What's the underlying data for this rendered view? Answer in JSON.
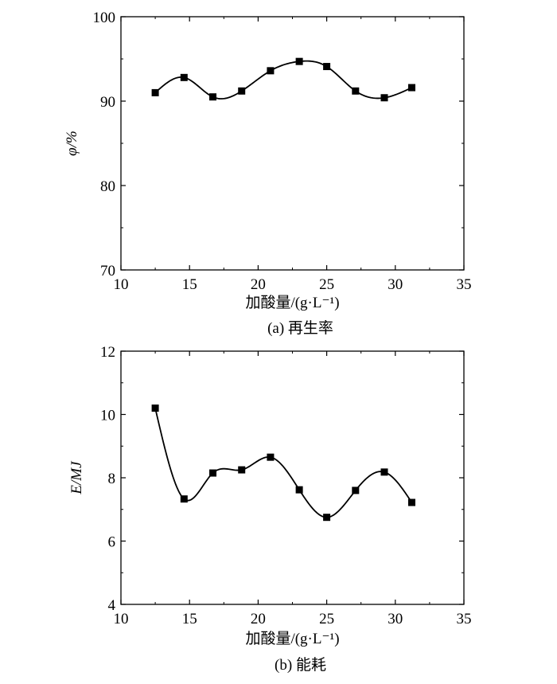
{
  "chart_data": [
    {
      "type": "scatter",
      "caption": "(a) 再生率",
      "xlabel": "加酸量/(g·L⁻¹)",
      "ylabel": "φ/%",
      "xlim": [
        10,
        35
      ],
      "ylim": [
        70,
        100
      ],
      "xticks": [
        10,
        15,
        20,
        25,
        30,
        35
      ],
      "yticks": [
        70,
        80,
        90,
        100
      ],
      "x": [
        12.5,
        14.6,
        16.7,
        18.8,
        20.9,
        23.0,
        25.0,
        27.1,
        29.2,
        31.2
      ],
      "y": [
        91.0,
        92.8,
        90.5,
        91.2,
        93.6,
        94.7,
        94.1,
        91.2,
        90.4,
        91.6
      ],
      "fit_curve": true,
      "grid": false,
      "legend": "none",
      "marker": "square"
    },
    {
      "type": "scatter",
      "caption": "(b) 能耗",
      "xlabel": "加酸量/(g·L⁻¹)",
      "ylabel": "E/MJ",
      "xlim": [
        10,
        35
      ],
      "ylim": [
        4,
        12
      ],
      "xticks": [
        10,
        15,
        20,
        25,
        30,
        35
      ],
      "yticks": [
        4,
        6,
        8,
        10,
        12
      ],
      "x": [
        12.5,
        14.6,
        16.7,
        18.8,
        20.9,
        23.0,
        25.0,
        27.1,
        29.2,
        31.2
      ],
      "y": [
        10.2,
        7.33,
        8.15,
        8.25,
        8.65,
        7.62,
        6.75,
        7.6,
        8.18,
        7.22
      ],
      "fit_curve": true,
      "grid": false,
      "legend": "none",
      "marker": "square"
    }
  ]
}
